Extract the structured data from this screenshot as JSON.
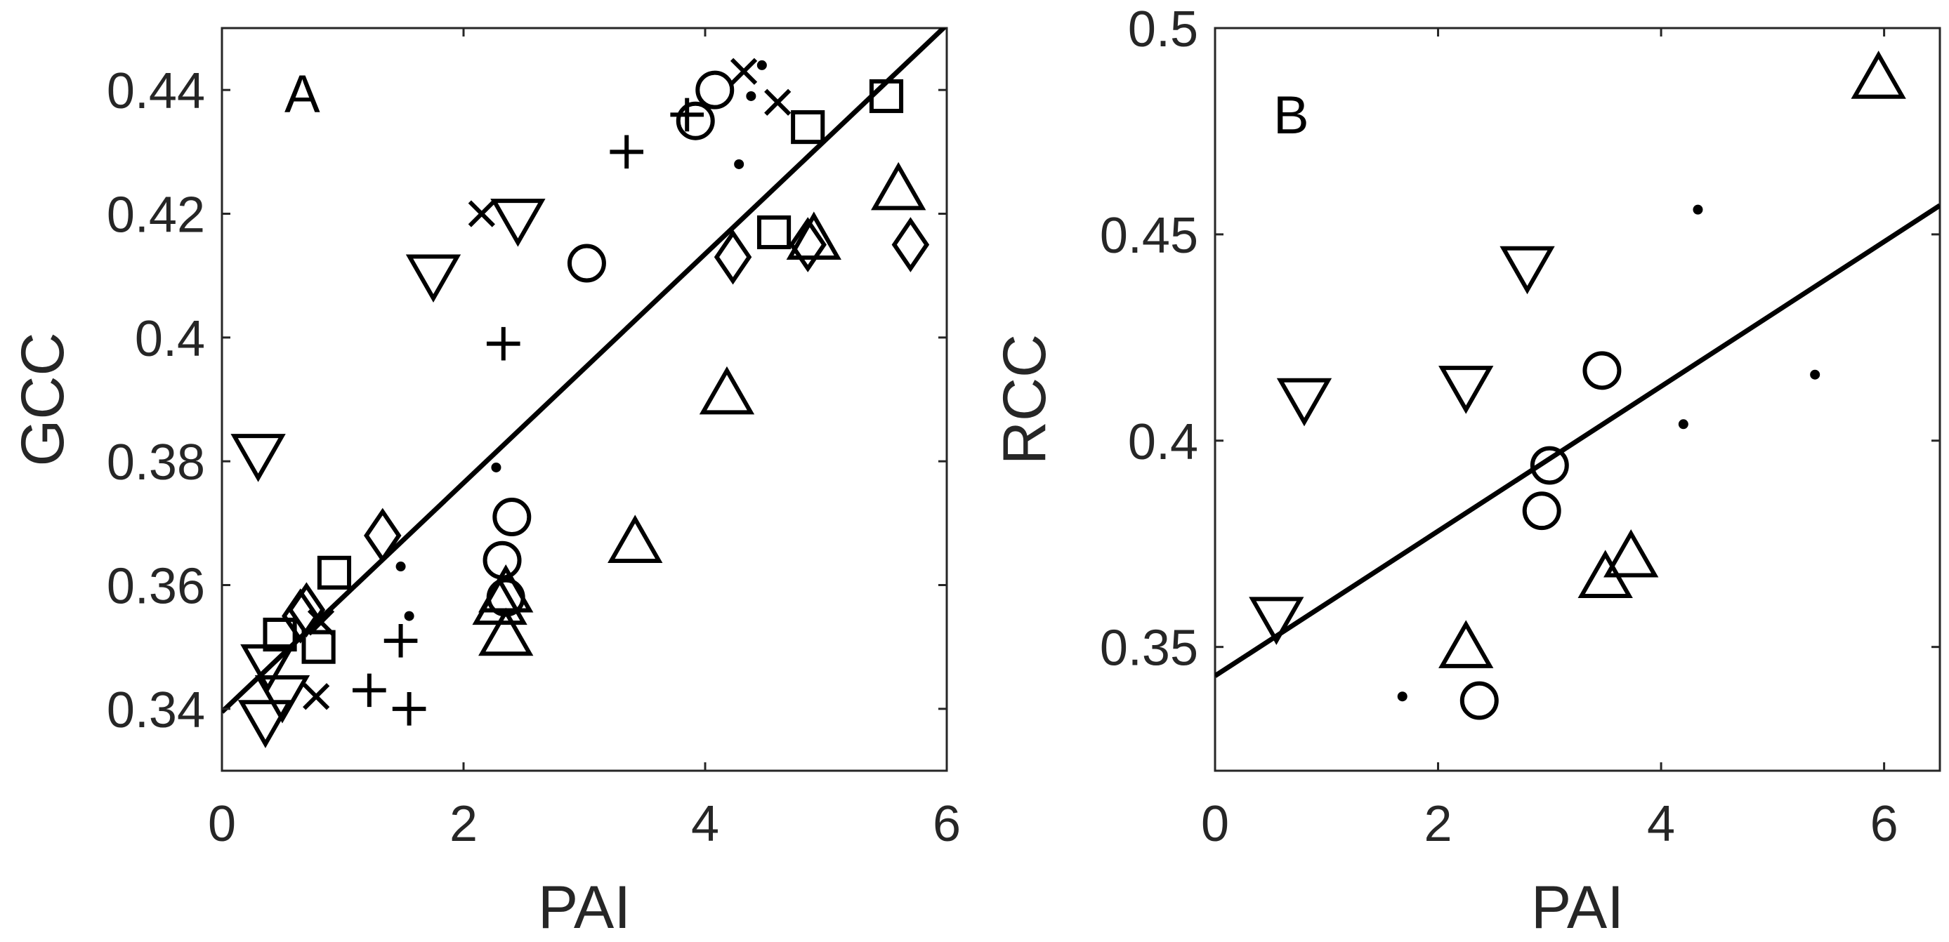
{
  "chart_data": [
    {
      "type": "scatter",
      "panel_label": "A",
      "xlabel": "PAI",
      "ylabel": "GCC",
      "xlim": [
        0,
        6
      ],
      "ylim": [
        0.33,
        0.45
      ],
      "xticks": [
        0,
        2,
        4,
        6
      ],
      "yticks": [
        0.34,
        0.36,
        0.38,
        0.4,
        0.42,
        0.44
      ],
      "ytick_labels": [
        "0.34",
        "0.36",
        "0.38",
        "0.4",
        "0.42",
        "0.44"
      ],
      "grid": false,
      "fit_line": {
        "x": [
          0,
          6
        ],
        "y": [
          0.3395,
          0.4505
        ]
      },
      "series": [
        {
          "marker": "triangle-down",
          "points": [
            [
              0.3,
              0.381
            ],
            [
              0.38,
              0.347
            ],
            [
              0.36,
              0.338
            ],
            [
              0.5,
              0.342
            ],
            [
              1.75,
              0.41
            ],
            [
              2.45,
              0.419
            ]
          ]
        },
        {
          "marker": "triangle-up",
          "points": [
            [
              2.3,
              0.357
            ],
            [
              2.35,
              0.359
            ],
            [
              2.35,
              0.352
            ],
            [
              3.42,
              0.367
            ],
            [
              4.18,
              0.391
            ],
            [
              4.9,
              0.416
            ],
            [
              5.6,
              0.424
            ]
          ]
        },
        {
          "marker": "circle",
          "points": [
            [
              2.32,
              0.364
            ],
            [
              2.35,
              0.358
            ],
            [
              2.4,
              0.371
            ],
            [
              3.02,
              0.412
            ],
            [
              3.92,
              0.435
            ],
            [
              4.08,
              0.44
            ]
          ]
        },
        {
          "marker": "square",
          "points": [
            [
              0.48,
              0.352
            ],
            [
              0.8,
              0.35
            ],
            [
              0.93,
              0.362
            ],
            [
              4.57,
              0.417
            ],
            [
              4.85,
              0.434
            ],
            [
              5.5,
              0.439
            ]
          ]
        },
        {
          "marker": "diamond",
          "points": [
            [
              0.65,
              0.355
            ],
            [
              0.7,
              0.356
            ],
            [
              1.33,
              0.368
            ],
            [
              4.23,
              0.413
            ],
            [
              4.85,
              0.415
            ],
            [
              5.7,
              0.415
            ]
          ]
        },
        {
          "marker": "plus",
          "points": [
            [
              1.22,
              0.343
            ],
            [
              1.55,
              0.34
            ],
            [
              1.48,
              0.351
            ],
            [
              2.33,
              0.399
            ],
            [
              3.35,
              0.43
            ],
            [
              3.85,
              0.436
            ]
          ]
        },
        {
          "marker": "x",
          "points": [
            [
              0.78,
              0.342
            ],
            [
              0.82,
              0.354
            ],
            [
              2.15,
              0.42
            ],
            [
              4.32,
              0.443
            ],
            [
              4.6,
              0.438
            ]
          ]
        },
        {
          "marker": "dot",
          "points": [
            [
              1.48,
              0.363
            ],
            [
              1.55,
              0.355
            ],
            [
              2.27,
              0.379
            ],
            [
              4.28,
              0.428
            ],
            [
              4.47,
              0.444
            ],
            [
              4.38,
              0.439
            ]
          ]
        }
      ]
    },
    {
      "type": "scatter",
      "panel_label": "B",
      "xlabel": "PAI",
      "ylabel": "RCC",
      "xlim": [
        0,
        6.5
      ],
      "ylim": [
        0.32,
        0.5
      ],
      "xticks": [
        0,
        2,
        4,
        6
      ],
      "yticks": [
        0.35,
        0.4,
        0.45,
        0.5
      ],
      "ytick_labels": [
        "0.35",
        "0.4",
        "0.45",
        "0.5"
      ],
      "grid": false,
      "fit_line": {
        "x": [
          0,
          6.5
        ],
        "y": [
          0.343,
          0.457
        ]
      },
      "series": [
        {
          "marker": "triangle-down",
          "points": [
            [
              0.55,
              0.357
            ],
            [
              0.8,
              0.41
            ],
            [
              2.25,
              0.413
            ],
            [
              2.8,
              0.442
            ]
          ]
        },
        {
          "marker": "triangle-up",
          "points": [
            [
              2.25,
              0.35
            ],
            [
              3.5,
              0.367
            ],
            [
              3.73,
              0.372
            ],
            [
              5.95,
              0.488
            ]
          ]
        },
        {
          "marker": "circle",
          "points": [
            [
              2.37,
              0.337
            ],
            [
              2.93,
              0.383
            ],
            [
              3.0,
              0.394
            ],
            [
              3.47,
              0.417
            ]
          ]
        },
        {
          "marker": "dot",
          "points": [
            [
              1.68,
              0.338
            ],
            [
              4.2,
              0.404
            ],
            [
              4.33,
              0.456
            ],
            [
              5.38,
              0.416
            ]
          ]
        }
      ]
    }
  ]
}
